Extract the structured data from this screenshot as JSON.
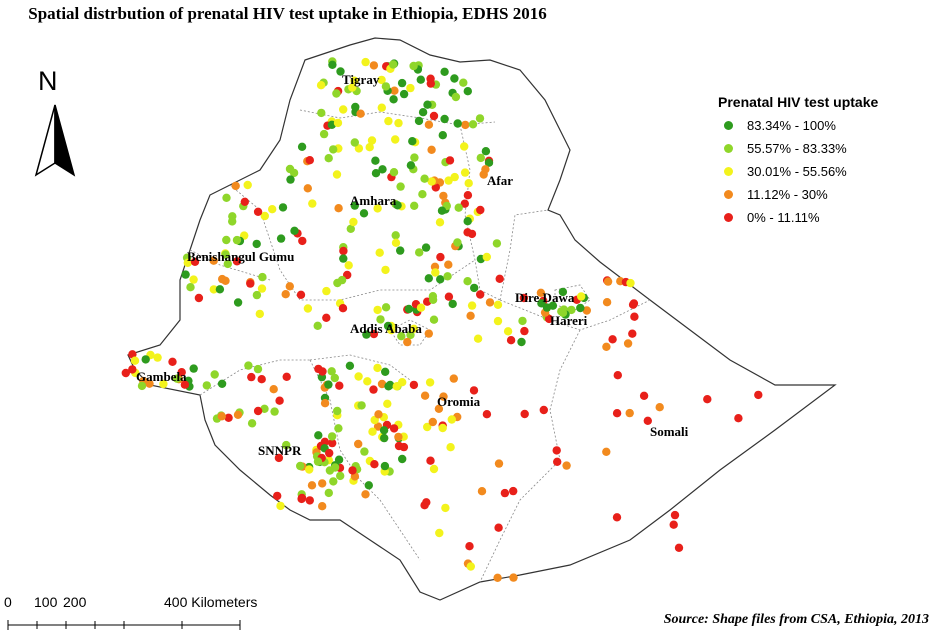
{
  "title": "Spatial distrbution of prenatal HIV test uptake in Ethiopia, EDHS 2016",
  "legend": {
    "title": "Prenatal HIV test uptake",
    "classes": [
      {
        "label": "83.34% - 100%",
        "color": "#2e9b1e"
      },
      {
        "label": "55.57% - 83.33%",
        "color": "#8fd62a"
      },
      {
        "label": "30.01% - 55.56%",
        "color": "#f3f31c"
      },
      {
        "label": "11.12% - 30%",
        "color": "#f28a1e"
      },
      {
        "label": "0% - 11.11%",
        "color": "#e8201a"
      }
    ]
  },
  "north_arrow": {
    "label": "N"
  },
  "regions": [
    "Tigray",
    "Afar",
    "Amhara",
    "Benishangul Gumu",
    "Dire Dawa",
    "Hareri",
    "Addis Ababa",
    "Gambela",
    "Oromia",
    "Somali",
    "SNNPR"
  ],
  "scale_bar": {
    "labels": [
      "0",
      "100",
      "200",
      "400 Kilometers"
    ]
  },
  "source": "Source: Shape files from CSA, Ethiopia, 2013"
}
